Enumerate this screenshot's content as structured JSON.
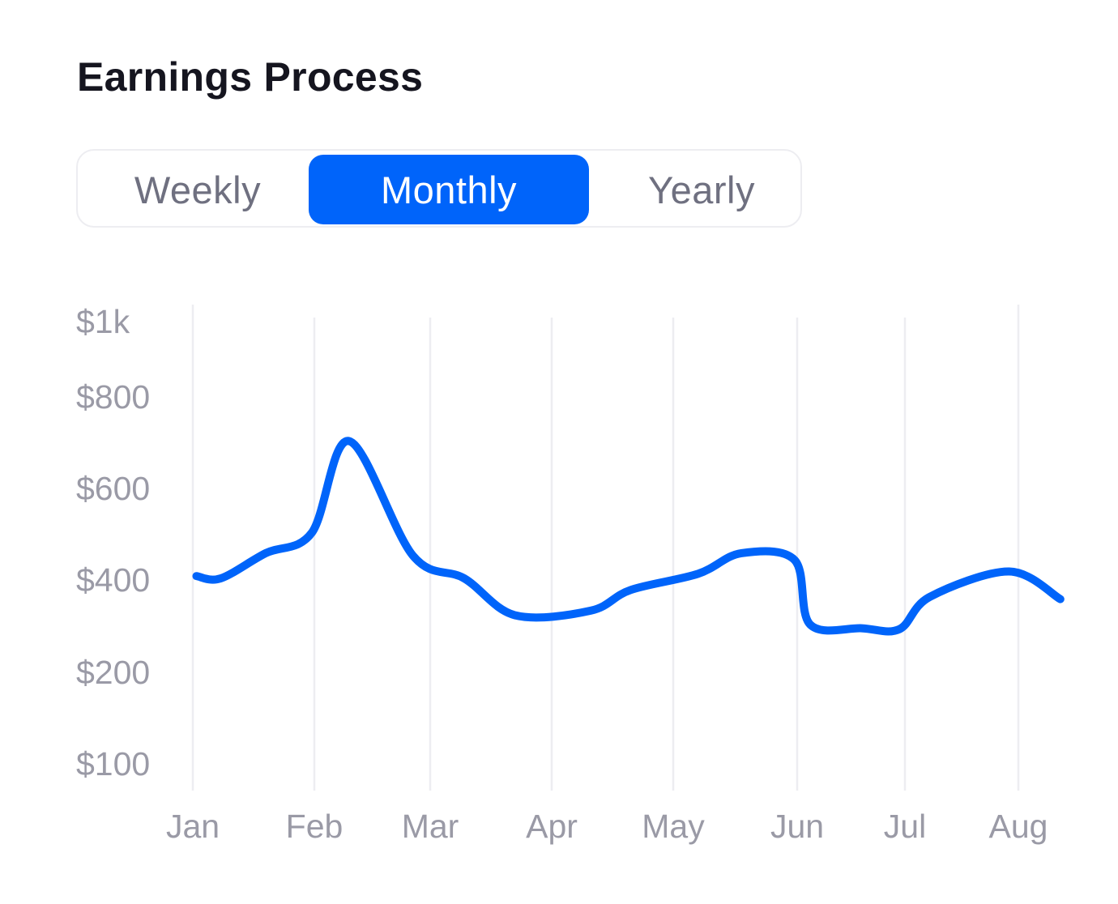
{
  "header": {
    "title": "Earnings Process"
  },
  "period_tabs": {
    "items": [
      {
        "label": "Weekly",
        "selected": false
      },
      {
        "label": "Monthly",
        "selected": true
      },
      {
        "label": "Yearly",
        "selected": false
      }
    ]
  },
  "colors": {
    "accent": "#0064fa",
    "line": "#0064fa",
    "grid": "#ededf1",
    "tick_text": "#9a9aa6",
    "title_text": "#15151f"
  },
  "chart_data": {
    "type": "line",
    "title": "",
    "xlabel": "",
    "ylabel": "",
    "categories": [
      "Jan",
      "Feb",
      "Mar",
      "Apr",
      "May",
      "Jun",
      "Jul",
      "Aug"
    ],
    "y_ticks": [
      {
        "label": "$1k",
        "value": 1000
      },
      {
        "label": "$800",
        "value": 800
      },
      {
        "label": "$600",
        "value": 600
      },
      {
        "label": "$400",
        "value": 400
      },
      {
        "label": "$200",
        "value": 200
      },
      {
        "label": "$100",
        "value": 100
      }
    ],
    "grid": "vertical",
    "series": [
      {
        "x": [
          0.03,
          0.23,
          0.6,
          0.98,
          1.3,
          1.85,
          2.28,
          2.7,
          3.32,
          3.65,
          4.2,
          4.55,
          4.98,
          5.12,
          5.6,
          5.95,
          6.22,
          6.92,
          7.37
        ],
        "values": [
          405,
          400,
          455,
          500,
          700,
          450,
          400,
          320,
          330,
          375,
          410,
          455,
          440,
          300,
          292,
          290,
          360,
          415,
          355
        ]
      }
    ]
  }
}
